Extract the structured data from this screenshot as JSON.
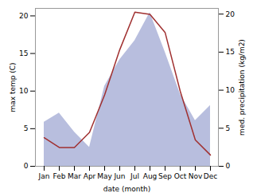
{
  "chart_data": {
    "type": "line",
    "xlabel": "date (month)",
    "ylabel": "max temp (C)",
    "y2label": "med. precipitation (kg/m2)",
    "categories": [
      "Jan",
      "Feb",
      "Mar",
      "Apr",
      "May",
      "Jun",
      "Jul",
      "Aug",
      "Sep",
      "Oct",
      "Nov",
      "Dec"
    ],
    "series": [
      {
        "type": "area",
        "color": "#b8bede",
        "axis": "y2",
        "values": [
          5.8,
          7.0,
          4.5,
          2.5,
          10.5,
          14.0,
          16.5,
          20.2,
          15.0,
          9.5,
          6.0,
          8.0
        ]
      },
      {
        "type": "line",
        "color": "#a03030",
        "values": [
          3.8,
          2.5,
          2.5,
          4.5,
          9.5,
          15.5,
          20.5,
          20.2,
          17.8,
          10.0,
          3.5,
          1.5
        ]
      }
    ],
    "ylim": [
      0,
      21
    ],
    "yticks": [
      0,
      5,
      10,
      15,
      20
    ],
    "y2lim": [
      0,
      20.75
    ],
    "y2ticks": [
      0,
      5,
      10,
      15,
      20
    ],
    "grid": false
  }
}
